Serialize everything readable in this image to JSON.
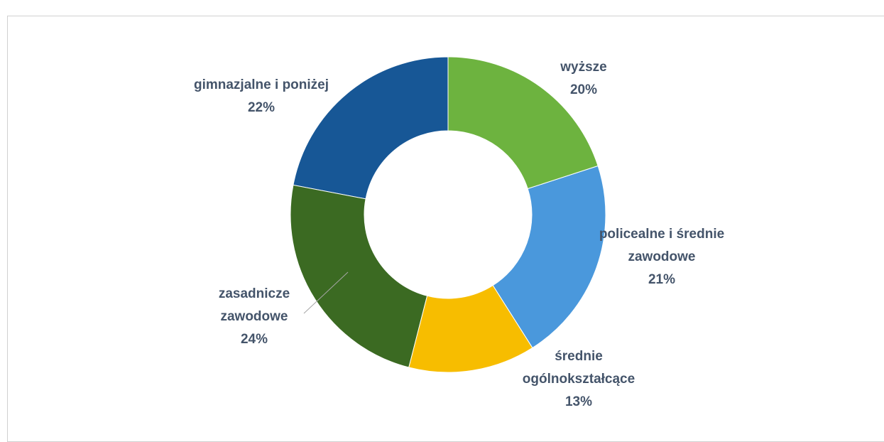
{
  "chart_data": {
    "type": "donut",
    "categories": [
      "wyższe",
      "policealne i średnie zawodowe",
      "średnie ogólnokształcące",
      "zasadnicze zawodowe",
      "gimnazjalne i poniżej"
    ],
    "values": [
      20,
      21,
      13,
      24,
      22
    ],
    "value_labels": [
      "20%",
      "21%",
      "13%",
      "24%",
      "22%"
    ],
    "colors": [
      "#6db33f",
      "#4a98dc",
      "#f7bd00",
      "#3b6a22",
      "#175796"
    ]
  }
}
